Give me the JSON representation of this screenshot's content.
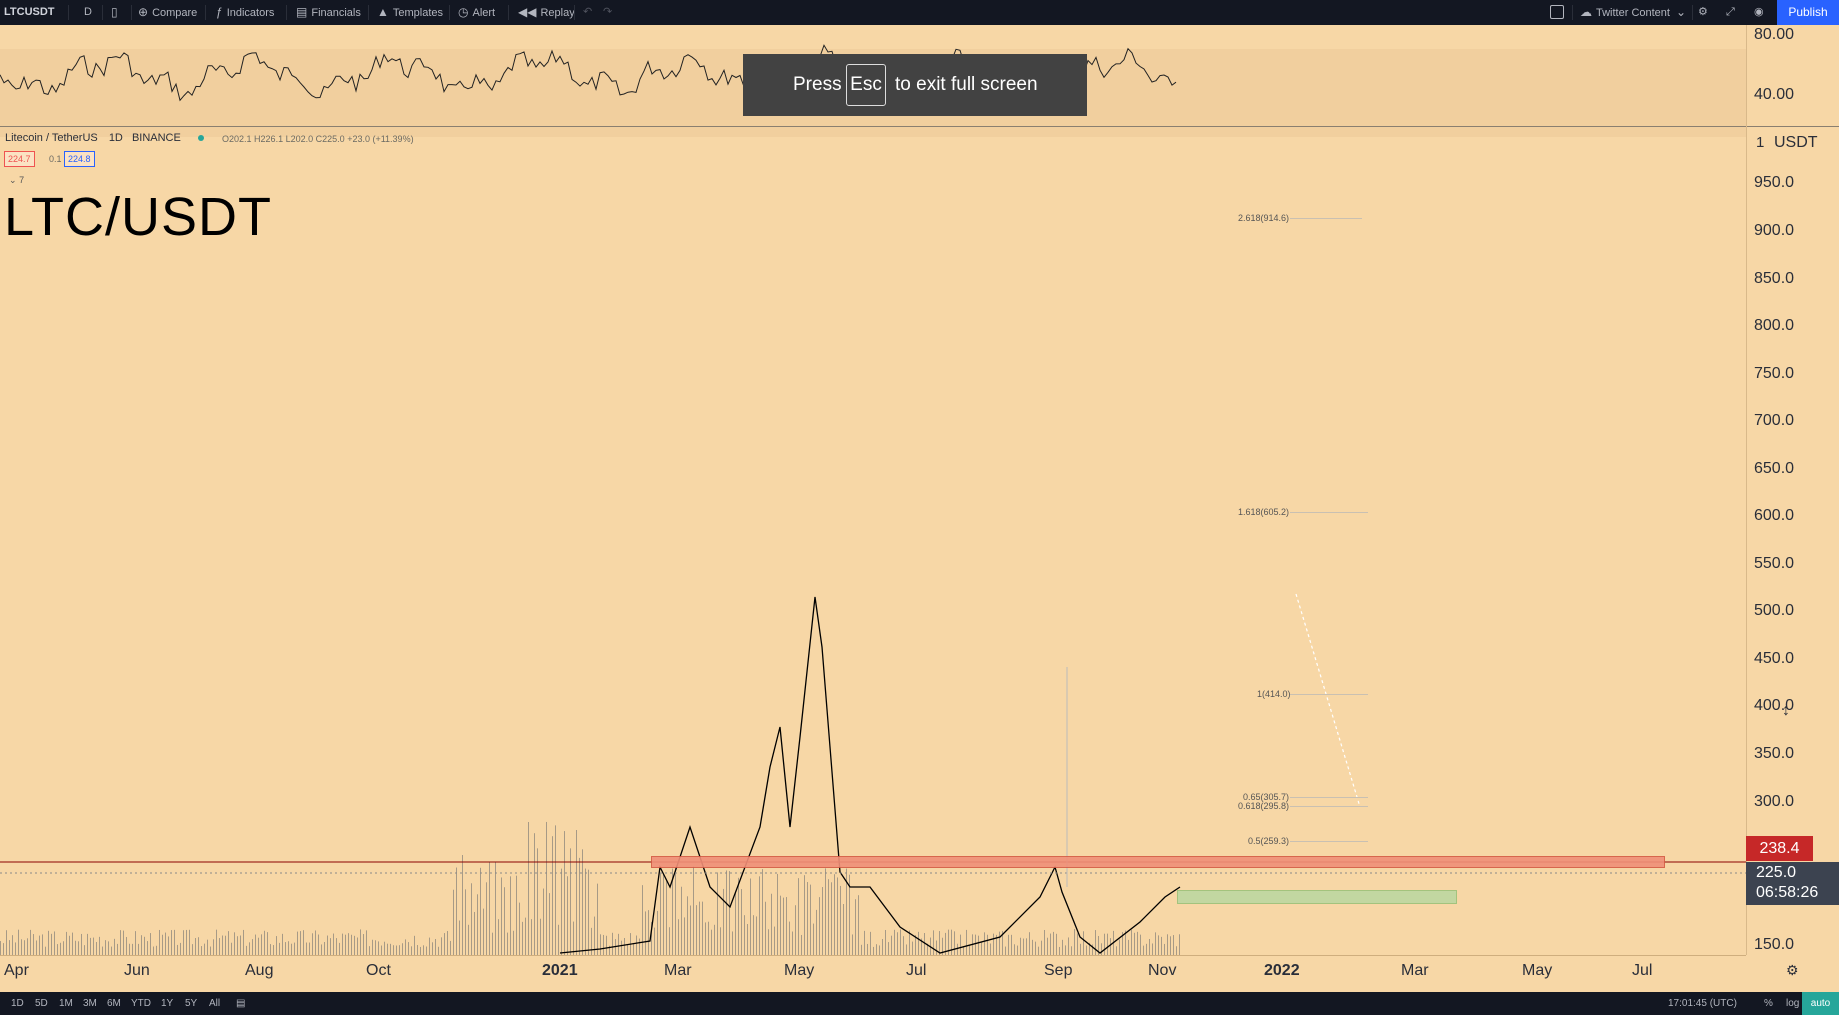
{
  "toolbar": {
    "symbol": "LTCUSDT",
    "interval": "D",
    "compare": "Compare",
    "indicators": "Indicators",
    "financials": "Financials",
    "templates": "Templates",
    "alert": "Alert",
    "replay": "Replay",
    "layout_name": "Twitter Content",
    "publish": "Publish"
  },
  "legend": {
    "name": "Litecoin / TetherUS",
    "interval": "1D",
    "exchange": "BINANCE",
    "ohlc": {
      "o": "O202.1",
      "h": "H226.1",
      "l": "L202.0",
      "c": "C225.0",
      "chg": "+23.0 (+11.39%)"
    },
    "bid": "224.7",
    "spread": "0.1",
    "ask": "224.8",
    "collapse": "7"
  },
  "title": "LTC/USDT",
  "overlay": {
    "press": "Press",
    "key": "Esc",
    "rest": "to exit full screen"
  },
  "rsi_axis": [
    "80.00",
    "40.00"
  ],
  "price_axis": {
    "currency": "USDT",
    "top_partial": "1",
    "labels": [
      "950.0",
      "900.0",
      "850.0",
      "800.0",
      "750.0",
      "700.0",
      "650.0",
      "600.0",
      "550.0",
      "500.0",
      "450.0",
      "400.0",
      "350.0",
      "300.0",
      "150.0"
    ],
    "resistance_label": "238.4",
    "last_price": "225.0",
    "countdown": "06:58:26"
  },
  "time_axis": [
    "Apr",
    "Jun",
    "Aug",
    "Oct",
    "2021",
    "Mar",
    "May",
    "Jul",
    "Sep",
    "Nov",
    "2022",
    "Mar",
    "May",
    "Jul"
  ],
  "fib_levels": [
    {
      "label": "2.618(914.6)"
    },
    {
      "label": "1.618(605.2)"
    },
    {
      "label": "1(414.0)"
    },
    {
      "label": "0.65(305.7)"
    },
    {
      "label": "0.618(295.8)"
    },
    {
      "label": "0.5(259.3)"
    }
  ],
  "ranges": [
    "1D",
    "5D",
    "1M",
    "3M",
    "6M",
    "YTD",
    "1Y",
    "5Y",
    "All"
  ],
  "status": {
    "clock": "17:01:45 (UTC)",
    "percent": "%",
    "log": "log",
    "auto": "auto"
  },
  "colors": {
    "background": "#f7d7a6",
    "toolbar": "#131722",
    "publish": "#2962ff",
    "resistance": "#c62828",
    "support_zone": "#b5d8a1"
  }
}
